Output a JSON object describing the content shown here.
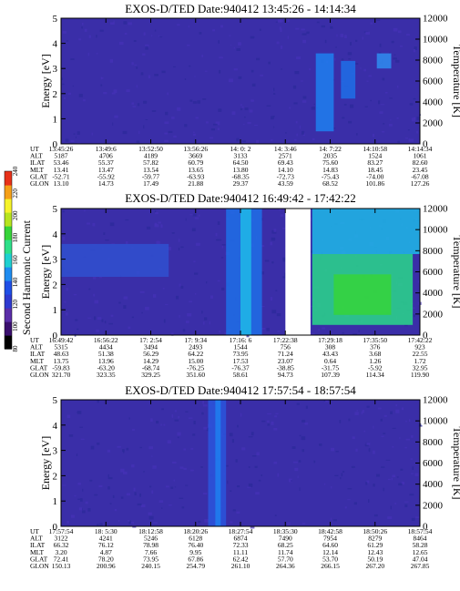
{
  "colorbar": {
    "label": "Second Harmonic Current",
    "ticks": [
      "80",
      "100",
      "120",
      "140",
      "160",
      "180",
      "200",
      "220",
      "240"
    ],
    "colors": [
      "#000000",
      "#3a0f6e",
      "#5a2ea8",
      "#2e3ad0",
      "#1f4fe6",
      "#1f8cf0",
      "#1fd0d0",
      "#2ee08a",
      "#36d43a",
      "#b7e41f",
      "#f6f32a",
      "#f5a018",
      "#e8321a"
    ]
  },
  "panels": [
    {
      "title": "EXOS-D/TED   Date:940412  13:45:26 - 14:14:34",
      "ylabel_left": "Energy [eV]",
      "ylabel_right": "Temperature [K]",
      "ephemeris": [
        {
          "name": "UT",
          "values": [
            "13:45:26",
            "13:49:6",
            "13:52:50",
            "13:56:26",
            "14: 0: 2",
            "14: 3:46",
            "14: 7:22",
            "14:10:58",
            "14:14:34"
          ]
        },
        {
          "name": "ALT",
          "values": [
            "5187",
            "4706",
            "4189",
            "3669",
            "3133",
            "2571",
            "2035",
            "1524",
            "1061"
          ]
        },
        {
          "name": "ILAT",
          "values": [
            "53.46",
            "55.37",
            "57.82",
            "60.79",
            "64.50",
            "69.43",
            "75.60",
            "83.27",
            "82.60"
          ]
        },
        {
          "name": "MLT",
          "values": [
            "13.41",
            "13.47",
            "13.54",
            "13.65",
            "13.80",
            "14.10",
            "14.83",
            "18.45",
            "23.45"
          ]
        },
        {
          "name": "GLAT",
          "values": [
            "-52.71",
            "-55.92",
            "-59.77",
            "-63.93",
            "-68.35",
            "-72.73",
            "-75.43",
            "-74.00",
            "-67.08"
          ]
        },
        {
          "name": "GLON",
          "values": [
            "13.10",
            "14.73",
            "17.49",
            "21.88",
            "29.37",
            "43.59",
            "68.52",
            "101.86",
            "127.26"
          ]
        }
      ]
    },
    {
      "title": "EXOS-D/TED   Date:940412  16:49:42 - 17:42:22",
      "ylabel_left": "Energy [eV]",
      "ylabel_right": "Temperature [K]",
      "ephemeris": [
        {
          "name": "UT",
          "values": [
            "16:49:42",
            "16:56:22",
            "17: 2:54",
            "17: 9:34",
            "17:16: 6",
            "17:22:38",
            "17:29:18",
            "17:35:50",
            "17:42:22"
          ]
        },
        {
          "name": "ALT",
          "values": [
            "5315",
            "4434",
            "3494",
            "2493",
            "1544",
            "756",
            "308",
            "376",
            "923"
          ]
        },
        {
          "name": "ILAT",
          "values": [
            "48.63",
            "51.38",
            "56.29",
            "64.22",
            "73.95",
            "71.24",
            "43.43",
            "3.68",
            "22.55"
          ]
        },
        {
          "name": "MLT",
          "values": [
            "13.75",
            "13.96",
            "14.29",
            "15.00",
            "17.53",
            "23.07",
            "0.64",
            "1.26",
            "1.72"
          ]
        },
        {
          "name": "GLAT",
          "values": [
            "-59.83",
            "-63.20",
            "-68.74",
            "-76.25",
            "-76.37",
            "-38.85",
            "-31.75",
            "-5.92",
            "32.95"
          ]
        },
        {
          "name": "GLON",
          "values": [
            "321.70",
            "323.35",
            "329.25",
            "351.60",
            "58.61",
            "94.73",
            "107.39",
            "114.34",
            "119.90"
          ]
        }
      ]
    },
    {
      "title": "EXOS-D/TED   Date:940412  17:57:54 - 18:57:54",
      "ylabel_left": "Energy [eV]",
      "ylabel_right": "Temperature [K]",
      "ephemeris": [
        {
          "name": "UT",
          "values": [
            "17:57:54",
            "18: 5:30",
            "18:12:58",
            "18:20:26",
            "18:27:54",
            "18:35:30",
            "18:42:58",
            "18:50:26",
            "18:57:54"
          ]
        },
        {
          "name": "ALT",
          "values": [
            "3122",
            "4241",
            "5246",
            "6128",
            "6874",
            "7490",
            "7954",
            "8279",
            "8464"
          ]
        },
        {
          "name": "ILAT",
          "values": [
            "66.32",
            "76.12",
            "78.98",
            "76.40",
            "72.33",
            "68.25",
            "64.60",
            "61.29",
            "58.28"
          ]
        },
        {
          "name": "MLT",
          "values": [
            "3.20",
            "4.87",
            "7.66",
            "9.95",
            "11.11",
            "11.74",
            "12.14",
            "12.43",
            "12.65"
          ]
        },
        {
          "name": "GLAT",
          "values": [
            "72.41",
            "78.20",
            "73.95",
            "67.86",
            "62.42",
            "57.70",
            "53.70",
            "50.19",
            "47.04"
          ]
        },
        {
          "name": "GLON",
          "values": [
            "150.13",
            "200.96",
            "240.15",
            "254.79",
            "261.10",
            "264.36",
            "266.15",
            "267.20",
            "267.85"
          ]
        }
      ]
    }
  ],
  "chart_data": [
    {
      "type": "heatmap",
      "title": "EXOS-D/TED   Date:940412  13:45:26 - 14:14:34",
      "ylabel": "Energy [eV]",
      "ylim": [
        0,
        5
      ],
      "yticks": [
        0,
        1,
        2,
        3,
        4,
        5
      ],
      "ylabel2": "Temperature [K]",
      "ylim2": [
        0,
        12000
      ],
      "yticks2": [
        0,
        2000,
        4000,
        6000,
        8000,
        10000,
        12000
      ],
      "background": "#3a2ea8",
      "features": [
        {
          "x_frac": [
            0.71,
            0.76
          ],
          "energy": [
            0.5,
            3.6
          ],
          "color": "#1f7ff0"
        },
        {
          "x_frac": [
            0.78,
            0.82
          ],
          "energy": [
            1.8,
            3.3
          ],
          "color": "#1f6fe8"
        },
        {
          "x_frac": [
            0.88,
            0.92
          ],
          "energy": [
            3.0,
            3.6
          ],
          "color": "#2f8cf0"
        }
      ]
    },
    {
      "type": "heatmap",
      "title": "EXOS-D/TED   Date:940412  16:49:42 - 17:42:22",
      "ylabel": "Energy [eV]",
      "ylim": [
        0,
        5
      ],
      "yticks": [
        0,
        1,
        2,
        3,
        4,
        5
      ],
      "ylabel2": "Temperature [K]",
      "ylim2": [
        0,
        12000
      ],
      "yticks2": [
        0,
        2000,
        4000,
        6000,
        8000,
        10000,
        12000
      ],
      "background": "#3a2ea8",
      "features": [
        {
          "x_frac": [
            0.0,
            0.3
          ],
          "energy": [
            2.3,
            3.6
          ],
          "color": "#3050d0"
        },
        {
          "x_frac": [
            0.46,
            0.56
          ],
          "energy": [
            0.0,
            5.0
          ],
          "color": "#1f6fe8"
        },
        {
          "x_frac": [
            0.5,
            0.53
          ],
          "energy": [
            0.0,
            5.0
          ],
          "color": "#1fb8e8"
        },
        {
          "x_frac": [
            0.625,
            0.695
          ],
          "energy": [
            0.0,
            5.0
          ],
          "color": "#ffffff"
        },
        {
          "x_frac": [
            0.7,
            0.98
          ],
          "energy": [
            0.4,
            3.2
          ],
          "color": "#2ad88a"
        },
        {
          "x_frac": [
            0.76,
            0.92
          ],
          "energy": [
            0.8,
            2.4
          ],
          "color": "#36d43a"
        },
        {
          "x_frac": [
            0.7,
            1.0
          ],
          "energy": [
            3.2,
            5.0
          ],
          "color": "#1fb8e8"
        }
      ]
    },
    {
      "type": "heatmap",
      "title": "EXOS-D/TED   Date:940412  17:57:54 - 18:57:54",
      "ylabel": "Energy [eV]",
      "ylim": [
        0,
        5
      ],
      "yticks": [
        0,
        1,
        2,
        3,
        4,
        5
      ],
      "ylabel2": "Temperature [K]",
      "ylim2": [
        0,
        12000
      ],
      "yticks2": [
        0,
        2000,
        4000,
        6000,
        8000,
        10000,
        12000
      ],
      "background": "#3a2ea8",
      "features": [
        {
          "x_frac": [
            0.41,
            0.46
          ],
          "energy": [
            0.0,
            5.0
          ],
          "color": "#2a55dd"
        },
        {
          "x_frac": [
            0.43,
            0.445
          ],
          "energy": [
            0.0,
            5.0
          ],
          "color": "#1f7ff0"
        }
      ]
    }
  ]
}
